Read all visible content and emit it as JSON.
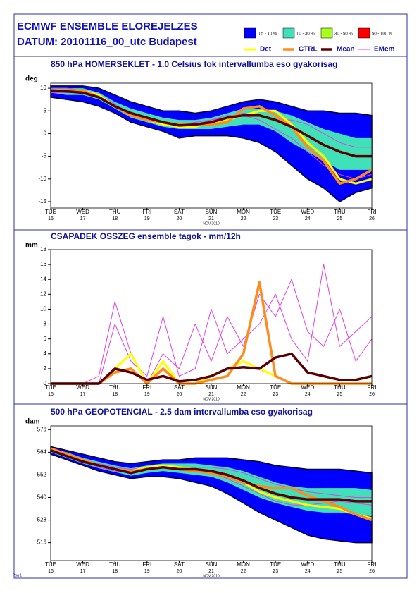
{
  "header": {
    "title": "ECMWF ENSEMBLE ELOREJELZES",
    "subtitle": "DATUM: 20101116_00_utc  Budapest"
  },
  "legend": {
    "bands": [
      {
        "name": "0.5 - 10 %",
        "color": "#0000ff"
      },
      {
        "name": "10 - 30 %",
        "color": "#40e0b8"
      },
      {
        "name": "30 - 50 %",
        "color": "#a8ff20"
      },
      {
        "name": "50 - 100 %",
        "color": "#ff0000"
      }
    ],
    "lines": [
      {
        "name": "Det",
        "color": "#ffff00"
      },
      {
        "name": "CTRL",
        "color": "#ff8c1a"
      },
      {
        "name": "Mean",
        "color": "#5a0000"
      },
      {
        "name": "EMem",
        "color": "#e040e0"
      }
    ]
  },
  "footer": "Pag 1",
  "chart_data": [
    {
      "type": "meteogram",
      "title": "850 hPa HOMERSEKLET - 1.0 Celsius fok intervallumba eso gyakorisag",
      "ylabel": "deg",
      "x": [
        16,
        16.5,
        17,
        17.5,
        18,
        18.5,
        19,
        19.5,
        20,
        20.5,
        21,
        21.5,
        22,
        22.5,
        23,
        23.5,
        24,
        24.5,
        25,
        25.5,
        26
      ],
      "xlim": [
        16,
        26
      ],
      "xticks": [
        16,
        17,
        18,
        19,
        20,
        21,
        22,
        23,
        24,
        25,
        26
      ],
      "xtick_weekdays": [
        "TUE",
        "WED",
        "THU",
        "FRI",
        "SAT",
        "SUN",
        "MON",
        "TUE",
        "WED",
        "THU",
        "FRI"
      ],
      "x_note": "NOV 2010",
      "highlight_xtick": 21,
      "highlight_color": "#e00000",
      "ylim": [
        -16.4,
        11.1
      ],
      "yticks": [
        -15,
        -10,
        -5,
        0,
        5,
        10
      ],
      "bands": [
        {
          "lower": [
            8,
            7.5,
            7,
            6,
            4.5,
            2.5,
            1.5,
            0.5,
            -1,
            -0.5,
            -0.5,
            -0.5,
            -1,
            -2,
            -4,
            -7,
            -10,
            -12,
            -15,
            -13,
            -12
          ],
          "upper": [
            10.5,
            10.5,
            10.5,
            10,
            8.5,
            7,
            6,
            5,
            5,
            4.5,
            5,
            6,
            7,
            7.5,
            7,
            6,
            5,
            5,
            4.5,
            4.5,
            4
          ]
        },
        {
          "lower": [
            9,
            8.5,
            8.5,
            7.5,
            5.5,
            3.5,
            2.5,
            1.5,
            1,
            1,
            1,
            1.5,
            2,
            2,
            0.5,
            -2,
            -4,
            -6,
            -8,
            -8,
            -8
          ],
          "upper": [
            10,
            10,
            10,
            9,
            7,
            5.5,
            4.5,
            3.5,
            3,
            3,
            3.5,
            4.5,
            5.5,
            5.5,
            5,
            4,
            2.5,
            1,
            0,
            -1,
            -1
          ]
        }
      ],
      "members": [
        [
          9,
          9,
          9,
          8,
          6,
          4.5,
          3,
          2,
          2,
          2.5,
          3,
          4,
          4,
          3,
          1,
          -1,
          -4,
          -7,
          -9,
          -10,
          -9
        ],
        [
          10,
          10,
          9.5,
          8.5,
          6.5,
          4,
          3,
          2.5,
          2,
          2,
          3,
          3.5,
          4.5,
          4,
          3,
          3,
          2,
          0,
          -2,
          -3,
          -3
        ]
      ],
      "series": [
        {
          "values": [
            9.5,
            9.5,
            9.5,
            8.5,
            6,
            4,
            3,
            2,
            1.5,
            1.5,
            2.5,
            3,
            4,
            5,
            5,
            2,
            -2,
            -5,
            -10,
            -11,
            -10
          ]
        },
        {
          "values": [
            9.5,
            9.5,
            9.5,
            8,
            6,
            4,
            3,
            2.5,
            2,
            2,
            2,
            2.5,
            5.5,
            6,
            4,
            1.5,
            -3,
            -6,
            -11,
            -10,
            -8
          ]
        },
        {
          "values": [
            9.5,
            9.3,
            9,
            8,
            6,
            4.5,
            3.5,
            2.5,
            1.8,
            2,
            2.5,
            3.5,
            4,
            4,
            3,
            1.5,
            -0.5,
            -2.5,
            -4,
            -5,
            -5
          ]
        }
      ]
    },
    {
      "type": "meteogram",
      "title": "CSAPADEK OSSZEG ensemble tagok - mm/12h",
      "ylabel": "mm",
      "x": [
        16,
        16.5,
        17,
        17.5,
        18,
        18.5,
        19,
        19.5,
        20,
        20.5,
        21,
        21.5,
        22,
        22.5,
        23,
        23.5,
        24,
        24.5,
        25,
        25.5,
        26
      ],
      "xlim": [
        16,
        26
      ],
      "xticks": [
        16,
        17,
        18,
        19,
        20,
        21,
        22,
        23,
        24,
        25,
        26
      ],
      "xtick_weekdays": [
        "TUE",
        "WED",
        "THU",
        "FRI",
        "SAT",
        "SUN",
        "MON",
        "TUE",
        "WED",
        "THU",
        "FRI"
      ],
      "x_note": "NOV 2010",
      "highlight_xtick": 21,
      "highlight_color": "#e00000",
      "ylim": [
        0,
        18
      ],
      "yticks": [
        0,
        2,
        4,
        6,
        8,
        10,
        12,
        14,
        16,
        18
      ],
      "bands": [],
      "members": [
        [
          0,
          0,
          0,
          0,
          8,
          3,
          1,
          9,
          1,
          2,
          10,
          4,
          6,
          8,
          12,
          6,
          3,
          16,
          5,
          7,
          9
        ],
        [
          0,
          0,
          0,
          1,
          11,
          4,
          0,
          4,
          2,
          8,
          3,
          9,
          5,
          12,
          9,
          14,
          7,
          5,
          10,
          3,
          6
        ]
      ],
      "series": [
        {
          "values": [
            0,
            0,
            0,
            0,
            2,
            4,
            0,
            3,
            0,
            0,
            1,
            2,
            3,
            2,
            1,
            0,
            0,
            0,
            0,
            0,
            0
          ]
        },
        {
          "values": [
            0,
            0,
            0,
            0,
            1.5,
            2,
            0,
            2,
            0,
            0,
            0.5,
            1,
            4,
            13.6,
            1,
            0,
            0,
            0,
            0,
            0,
            0
          ]
        },
        {
          "values": [
            0,
            0,
            0,
            0,
            2,
            1.5,
            0.5,
            1,
            0.3,
            0.5,
            1,
            2,
            2.2,
            2,
            3.5,
            4,
            1.5,
            1,
            0.5,
            0.5,
            1
          ]
        }
      ]
    },
    {
      "type": "meteogram",
      "title": "500 hPa GEOPOTENCIAL - 2.5 dam intervallumba eso gyakorisag",
      "ylabel": "dam",
      "x": [
        16,
        16.5,
        17,
        17.5,
        18,
        18.5,
        19,
        19.5,
        20,
        20.5,
        21,
        21.5,
        22,
        22.5,
        23,
        23.5,
        24,
        24.5,
        25,
        25.5,
        26
      ],
      "xlim": [
        16,
        26
      ],
      "xticks": [
        16,
        17,
        18,
        19,
        20,
        21,
        22,
        23,
        24,
        25,
        26
      ],
      "xtick_weekdays": [
        "TUE",
        "WED",
        "THU",
        "FRI",
        "SAT",
        "SUN",
        "MON",
        "TUE",
        "WED",
        "THU",
        "FRI"
      ],
      "x_note": "NOV 2010",
      "highlight_xtick": 21,
      "highlight_color": "#e00000",
      "ylim": [
        506.5,
        578
      ],
      "yticks": [
        516,
        528,
        540,
        552,
        564,
        576
      ],
      "bands": [
        {
          "lower": [
            563,
            560,
            557,
            554,
            552,
            550,
            551,
            551,
            550,
            548,
            546,
            542,
            537,
            532,
            528,
            524,
            520,
            518,
            517,
            516,
            516
          ],
          "upper": [
            567,
            565,
            563,
            561,
            559,
            558,
            559,
            560,
            560,
            561,
            561,
            561,
            560,
            559,
            557,
            556,
            555,
            555,
            555,
            554,
            553
          ]
        },
        {
          "lower": [
            564,
            561,
            558,
            555.5,
            553.5,
            551.5,
            553,
            554,
            553,
            552,
            551,
            548,
            544,
            540,
            537,
            535,
            533,
            532,
            532,
            531,
            530
          ],
          "upper": [
            566,
            564,
            561,
            559,
            557,
            555.5,
            557,
            558,
            558,
            558,
            557,
            556,
            554,
            551,
            548,
            546,
            545,
            545,
            545,
            545,
            544
          ]
        }
      ],
      "members": [
        [
          565,
          562,
          559,
          556,
          554,
          553,
          556,
          557,
          556,
          555,
          553,
          550,
          546,
          542,
          538,
          536,
          536,
          537,
          538,
          537,
          536
        ],
        [
          566,
          563,
          560,
          558,
          556,
          555,
          556,
          556,
          556,
          556,
          556,
          555,
          553,
          550,
          547,
          545,
          543,
          542,
          541,
          540,
          540
        ]
      ],
      "series": [
        {
          "values": [
            566,
            563,
            560,
            557,
            555,
            554,
            556,
            557,
            556,
            555,
            554,
            552,
            548,
            543,
            540,
            538,
            536,
            535,
            534,
            531,
            529
          ]
        },
        {
          "values": [
            566,
            563,
            560,
            557,
            555,
            554,
            555,
            556,
            555,
            554,
            553,
            551,
            548,
            546,
            545,
            545,
            541,
            538,
            535,
            531,
            528
          ]
        },
        {
          "values": [
            565,
            562,
            559,
            557,
            555,
            553,
            555,
            556,
            555,
            555,
            554,
            552,
            549,
            545,
            542,
            540,
            539,
            539,
            539,
            538,
            538
          ]
        }
      ]
    }
  ]
}
